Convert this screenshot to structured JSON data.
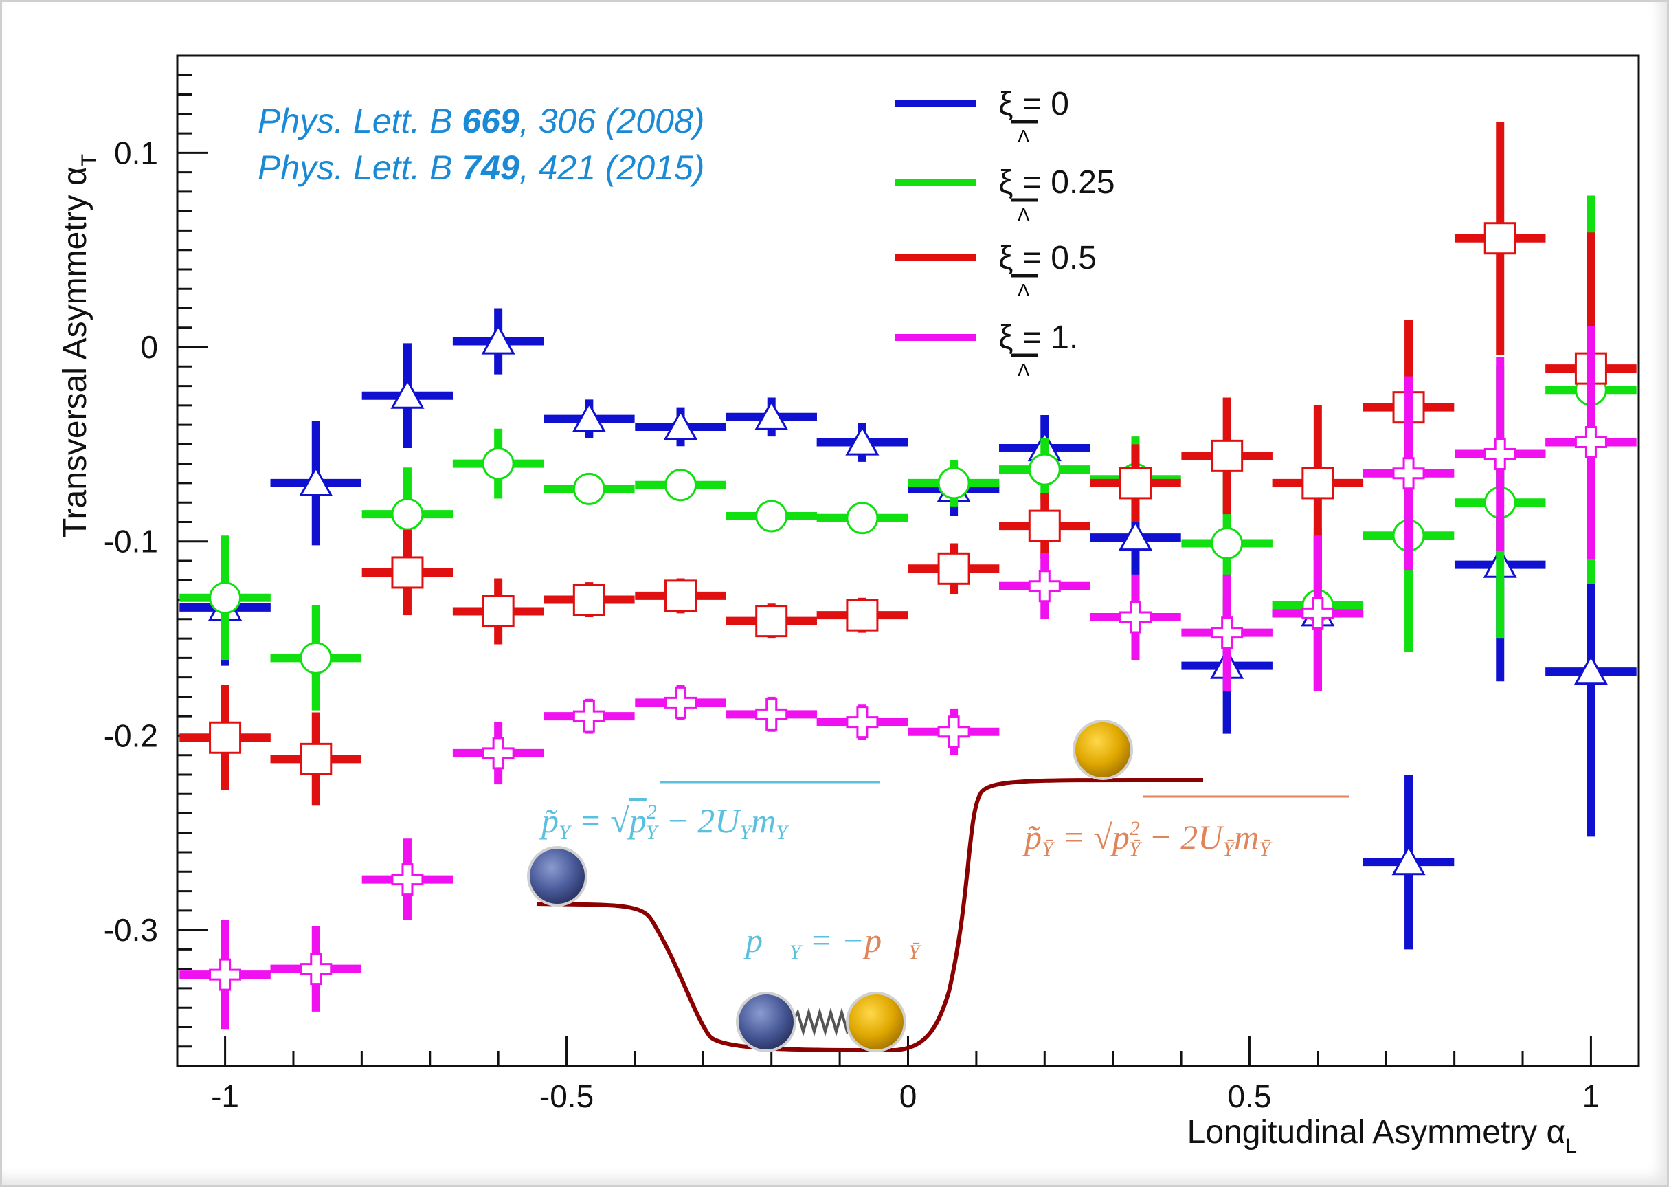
{
  "chart_data": {
    "type": "scatter",
    "xlabel": "Longitudinal Asymmetry α",
    "xlabel_sub": "L",
    "ylabel": "Transversal Asymmetry α",
    "ylabel_sub": "T",
    "xlim": [
      -1.07,
      1.07
    ],
    "ylim": [
      -0.37,
      0.15
    ],
    "xticks": [
      -1,
      -0.5,
      0,
      0.5,
      1
    ],
    "xtick_labels": [
      "-1",
      "-0.5",
      "0",
      "0.5",
      "1"
    ],
    "yticks": [
      0.1,
      0,
      -0.1,
      -0.2,
      -0.3
    ],
    "ytick_labels": [
      "0.1",
      "0",
      "-0.1",
      "-0.2",
      "-0.3"
    ],
    "legend_placement": "top-center",
    "references": [
      {
        "prefix": "Phys. Lett. B ",
        "volume": "669",
        "suffix": ", 306 (2008)"
      },
      {
        "prefix": "Phys. Lett. B ",
        "volume": "749",
        "suffix": ", 421 (2015)"
      }
    ],
    "series": [
      {
        "name": "ξ  = 0",
        "color": "#1010d0",
        "marker": "triangle",
        "x": [
          -1,
          -0.867,
          -0.733,
          -0.6,
          -0.467,
          -0.333,
          -0.2,
          -0.067,
          0.067,
          0.2,
          0.333,
          0.467,
          0.6,
          0.733,
          0.867,
          1
        ],
        "y": [
          -0.134,
          -0.07,
          -0.025,
          0.003,
          -0.037,
          -0.041,
          -0.036,
          -0.049,
          -0.073,
          -0.052,
          -0.098,
          -0.164,
          -0.137,
          -0.265,
          -0.112,
          -0.167
        ],
        "yerr": [
          0.03,
          0.032,
          0.027,
          0.017,
          0.01,
          0.01,
          0.01,
          0.01,
          0.014,
          0.017,
          0.05,
          0.035,
          0.04,
          0.045,
          0.06,
          0.085
        ]
      },
      {
        "name": "ξ  = 0.25",
        "color": "#10e010",
        "marker": "circle",
        "x": [
          -1,
          -0.867,
          -0.733,
          -0.6,
          -0.467,
          -0.333,
          -0.2,
          -0.067,
          0.067,
          0.2,
          0.333,
          0.467,
          0.6,
          0.733,
          0.867,
          1
        ],
        "y": [
          -0.129,
          -0.16,
          -0.086,
          -0.06,
          -0.073,
          -0.071,
          -0.087,
          -0.088,
          -0.07,
          -0.063,
          -0.068,
          -0.101,
          -0.133,
          -0.097,
          -0.08,
          -0.022
        ],
        "yerr": [
          0.032,
          0.027,
          0.024,
          0.018,
          0.008,
          0.008,
          0.008,
          0.008,
          0.012,
          0.016,
          0.022,
          0.045,
          0.04,
          0.06,
          0.07,
          0.1
        ]
      },
      {
        "name": "ξ  = 0.5",
        "color": "#e01010",
        "marker": "square",
        "x": [
          -1,
          -0.867,
          -0.733,
          -0.6,
          -0.467,
          -0.333,
          -0.2,
          -0.067,
          0.067,
          0.2,
          0.333,
          0.467,
          0.6,
          0.733,
          0.867,
          1
        ],
        "y": [
          -0.201,
          -0.212,
          -0.116,
          -0.136,
          -0.13,
          -0.128,
          -0.141,
          -0.138,
          -0.114,
          -0.092,
          -0.07,
          -0.056,
          -0.07,
          -0.031,
          0.056,
          -0.011
        ],
        "yerr": [
          0.027,
          0.024,
          0.022,
          0.017,
          0.009,
          0.009,
          0.009,
          0.009,
          0.013,
          0.017,
          0.02,
          0.03,
          0.04,
          0.045,
          0.06,
          0.07
        ]
      },
      {
        "name": "ξ  = 1.",
        "color": "#f010f0",
        "marker": "cross",
        "x": [
          -1,
          -0.867,
          -0.733,
          -0.6,
          -0.467,
          -0.333,
          -0.2,
          -0.067,
          0.067,
          0.2,
          0.333,
          0.467,
          0.6,
          0.733,
          0.867,
          1
        ],
        "y": [
          -0.323,
          -0.32,
          -0.274,
          -0.209,
          -0.19,
          -0.183,
          -0.189,
          -0.193,
          -0.198,
          -0.123,
          -0.139,
          -0.147,
          -0.137,
          -0.065,
          -0.055,
          -0.049
        ],
        "yerr": [
          0.028,
          0.022,
          0.021,
          0.016,
          0.009,
          0.009,
          0.009,
          0.009,
          0.012,
          0.017,
          0.022,
          0.03,
          0.04,
          0.05,
          0.05,
          0.06
        ]
      }
    ],
    "annotations": {
      "formula_left": "p̃Y = √(p²Y − 2UYmY)",
      "formula_right": "p̃Ȳ = √(p²Ȳ − 2UȲmȲ)",
      "formula_mid": "p⃗Y = −p⃗Ȳ",
      "hyperon_color": "#4a5b9a",
      "antihyperon_color": "#e0a800",
      "potential_color": "#8b0000"
    }
  }
}
